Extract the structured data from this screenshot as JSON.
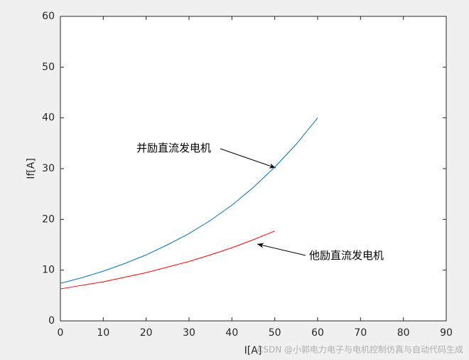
{
  "chart_data": {
    "type": "line",
    "x_label": "I[A]",
    "y_label": "If[A]",
    "x": [
      0,
      5,
      10,
      15,
      20,
      25,
      30,
      35,
      40,
      45,
      50,
      55,
      60
    ],
    "series": [
      {
        "name": "并励直流发电机",
        "color": "#0072bd",
        "values": [
          7.4,
          8.5,
          9.8,
          11.3,
          13.0,
          15.0,
          17.2,
          19.8,
          22.8,
          26.3,
          30.3,
          34.8,
          40.0
        ]
      },
      {
        "name": "他励直流发电机",
        "color": "#ff0000",
        "values": [
          6.3,
          7.0,
          7.7,
          8.6,
          9.5,
          10.6,
          11.7,
          13.0,
          14.4,
          16.0,
          17.7,
          null,
          null
        ]
      }
    ],
    "xlim": [
      0,
      90
    ],
    "xticks": [
      0,
      10,
      20,
      30,
      40,
      50,
      60,
      70,
      80,
      90
    ],
    "ylim": [
      0,
      60
    ],
    "yticks": [
      0,
      10,
      20,
      30,
      40,
      50,
      60
    ],
    "watermark": "CSDN @小郭电力电子与电机控制仿真与自动代码生成"
  }
}
